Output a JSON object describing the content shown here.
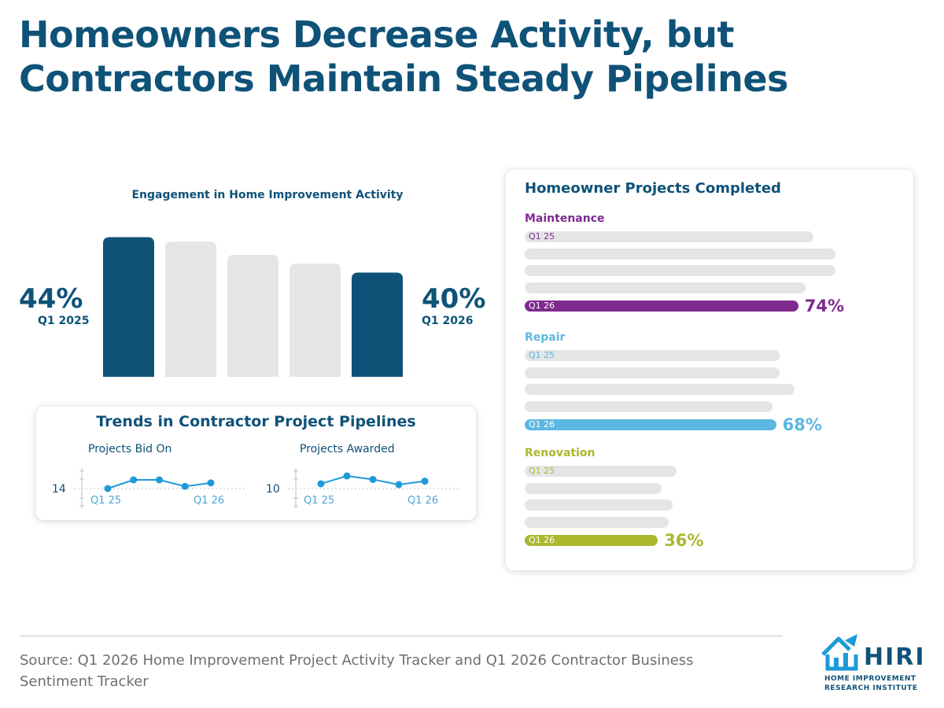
{
  "header": {
    "title_line1": "Homeowners Decrease Activity, but",
    "title_line2": "Contractors Maintain Steady Pipelines"
  },
  "colors": {
    "navy": "#0f5278",
    "gray_bar": "#e4e5e7",
    "maintenance": "#7e2a8e",
    "repair": "#5bb8e3",
    "renovation": "#abb82e",
    "trend_line": "#1e9ad8"
  },
  "chart_data": [
    {
      "type": "bar",
      "title": "Engagement in Home Improvement Activity",
      "categories": [
        "",
        "",
        "",
        "",
        ""
      ],
      "values": [
        44,
        43.5,
        42,
        41,
        40
      ],
      "highlighted": [
        true,
        false,
        false,
        false,
        true
      ],
      "start_value": "44%",
      "start_label": "Q1 2025",
      "end_value": "40%",
      "end_label": "Q1 2026"
    },
    {
      "type": "line",
      "title": "Trends in Contractor Project Pipelines",
      "panels": [
        {
          "name": "Projects Bid On",
          "y_label": "14",
          "baseline": 14,
          "x_start": "Q1 25",
          "x_end": "Q1 26",
          "values": [
            14,
            16,
            16,
            14.5,
            15.3
          ]
        },
        {
          "name": "Projects Awarded",
          "y_label": "10",
          "baseline": 10,
          "x_start": "Q1 25",
          "x_end": "Q1 26",
          "values": [
            12,
            13.8,
            13,
            11.8,
            12.6
          ]
        }
      ]
    },
    {
      "type": "bar",
      "orientation": "horizontal",
      "title": "Homeowner Projects Completed",
      "groups": [
        {
          "name": "Maintenance",
          "color": "#7e2a8e",
          "first_label": "Q1 25",
          "last_label": "Q1 26",
          "values": [
            78,
            84,
            84,
            76,
            74
          ],
          "final_pct": "74%"
        },
        {
          "name": "Repair",
          "color": "#5bb8e3",
          "first_label": "Q1 25",
          "last_label": "Q1 26",
          "values": [
            69,
            69,
            73,
            67,
            68
          ],
          "final_pct": "68%"
        },
        {
          "name": "Renovation",
          "color": "#abb82e",
          "first_label": "Q1 25",
          "last_label": "Q1 26",
          "values": [
            41,
            37,
            40,
            39,
            36
          ],
          "final_pct": "36%"
        }
      ]
    }
  ],
  "footer": {
    "source": "Source: Q1 2026 Home Improvement Project Activity Tracker and Q1 2026 Contractor Business Sentiment Tracker"
  },
  "logo": {
    "word": "HIRI",
    "sub1": "HOME IMPROVEMENT",
    "sub2": "RESEARCH INSTITUTE"
  }
}
